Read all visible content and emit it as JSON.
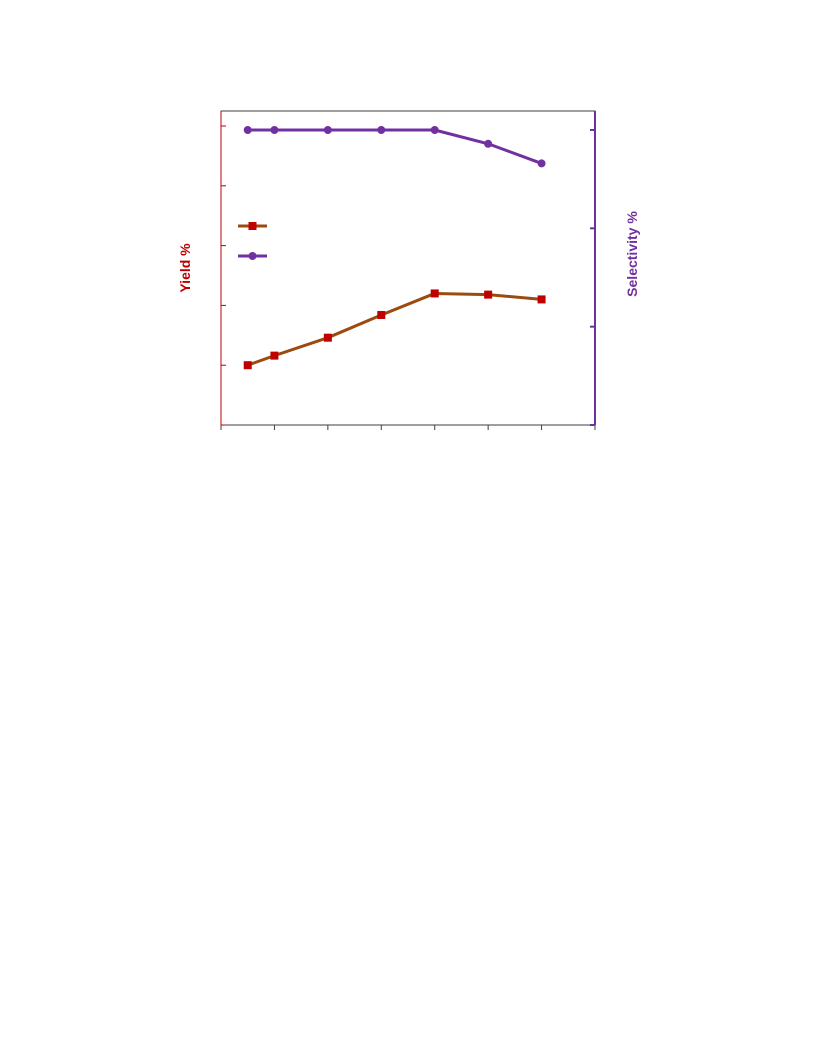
{
  "chart_data": {
    "type": "line",
    "title": "",
    "xlabel": "",
    "x": [
      0.5,
      1,
      2,
      3,
      4,
      5,
      6
    ],
    "xlim": [
      0,
      7
    ],
    "left_axis": {
      "label": "Yield %",
      "color": "#c00000",
      "ylim": [
        0,
        5
      ],
      "ticks": [
        0,
        1,
        2,
        3,
        4,
        5
      ]
    },
    "right_axis": {
      "label": "Selectivity %",
      "color": "#7030a0",
      "ylim": [
        0,
        3
      ],
      "ticks": [
        0,
        1,
        2,
        3
      ]
    },
    "series": [
      {
        "axis": "left",
        "values": [
          1.0,
          1.16,
          1.46,
          1.84,
          2.2,
          2.18,
          2.1
        ],
        "line_color": "#9c4a0e",
        "marker": "square",
        "marker_color": "#c00000"
      },
      {
        "axis": "right",
        "values": [
          3.0,
          3.0,
          3.0,
          3.0,
          3.0,
          2.86,
          2.66
        ],
        "line_color": "#7030a0",
        "marker": "circle",
        "marker_color": "#7030a0"
      }
    ],
    "legend": {
      "position": "left-middle",
      "show_labels": false
    },
    "grid": false
  }
}
